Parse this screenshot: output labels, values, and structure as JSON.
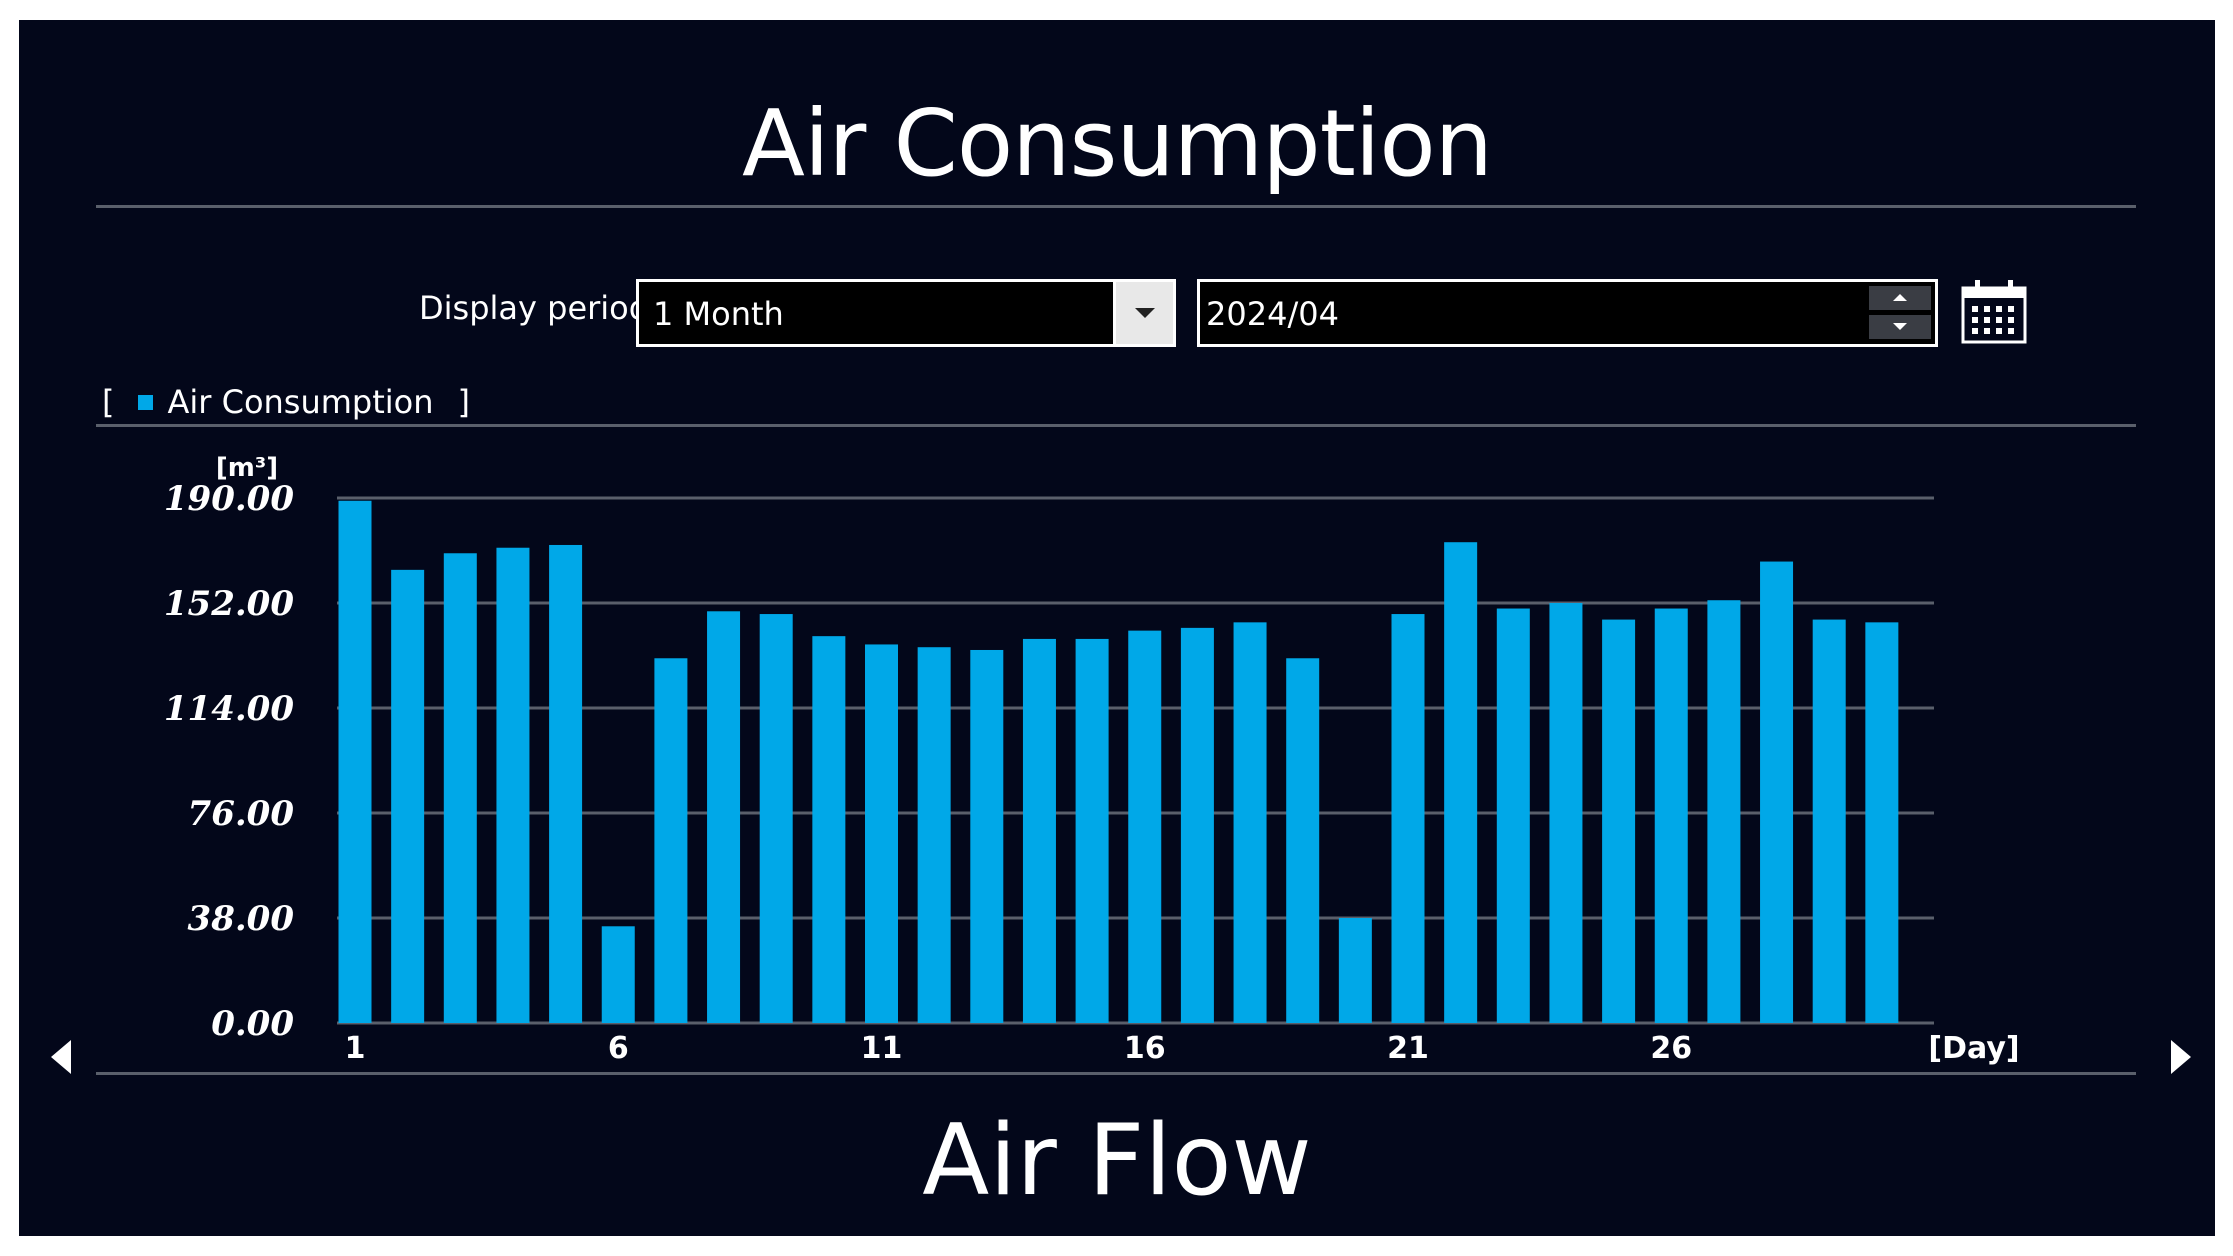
{
  "screen": {
    "title": "Air Consumption",
    "caption": "Air Flow"
  },
  "controls": {
    "display_period_label": "Display period",
    "period_value": "1 Month",
    "date_value": "2024/04",
    "calendar_icon": "calendar-icon",
    "dropdown_icon": "chevron-down-icon"
  },
  "legend": {
    "open": "[",
    "label": "Air Consumption",
    "close": "]"
  },
  "navigation": {
    "prev_icon": "triangle-left-icon",
    "next_icon": "triangle-right-icon"
  },
  "colors": {
    "background": "#03071a",
    "bar": "#00a8e8",
    "grid": "#5a5f6b",
    "text": "#ffffff"
  },
  "chart_data": {
    "type": "bar",
    "ylabel": "[m³]",
    "xlabel": "[Day]",
    "ylim": [
      0,
      190
    ],
    "yticks": [
      "0.00",
      "38.00",
      "76.00",
      "114.00",
      "152.00",
      "190.00"
    ],
    "xtick_days": [
      1,
      6,
      11,
      16,
      21,
      26
    ],
    "categories": [
      1,
      2,
      3,
      4,
      5,
      6,
      7,
      8,
      9,
      10,
      11,
      12,
      13,
      14,
      15,
      16,
      17,
      18,
      19,
      20,
      21,
      22,
      23,
      24,
      25,
      26,
      27,
      28,
      29,
      30
    ],
    "series": [
      {
        "name": "Air Consumption",
        "values": [
          189,
          164,
          170,
          172,
          173,
          35,
          132,
          149,
          148,
          140,
          137,
          136,
          135,
          139,
          139,
          142,
          143,
          145,
          132,
          38,
          148,
          174,
          150,
          152,
          146,
          150,
          153,
          167,
          146,
          145
        ]
      }
    ]
  }
}
